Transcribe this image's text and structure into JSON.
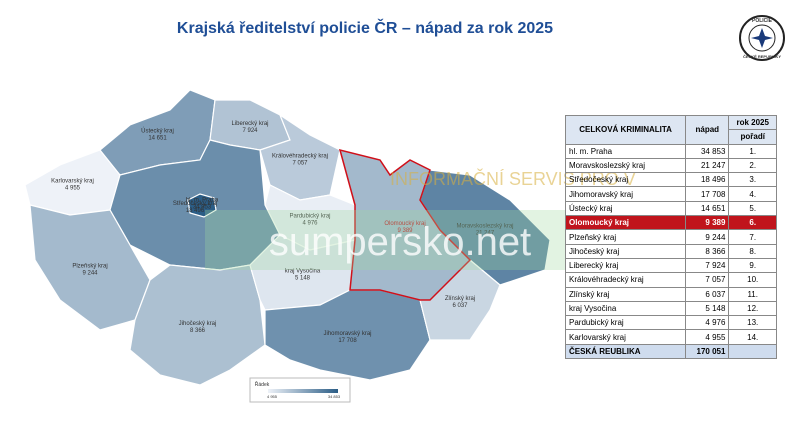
{
  "header": {
    "title": "Krajská ředitelství policie ČR – nápad za rok 2025"
  },
  "logo": {
    "top": "POLICIE",
    "bottom": "ČESKÉ REPUBLIKY"
  },
  "map": {
    "regions": [
      {
        "name": "hl. m. Praha",
        "value": "34 853"
      },
      {
        "name": "Moravskoslezský kraj",
        "value": "21 247"
      },
      {
        "name": "Středočeský kraj",
        "value": "18 496"
      },
      {
        "name": "Jihomoravský kraj",
        "value": "17 708"
      },
      {
        "name": "Ústecký kraj",
        "value": "14 651"
      },
      {
        "name": "Olomoucký kraj",
        "value": "9 389"
      },
      {
        "name": "Plzeňský kraj",
        "value": "9 244"
      },
      {
        "name": "Jihočeský kraj",
        "value": "8 366"
      },
      {
        "name": "Liberecký kraj",
        "value": "7 924"
      },
      {
        "name": "Královéhradecký kraj",
        "value": "7 057"
      },
      {
        "name": "Zlínský kraj",
        "value": "6 037"
      },
      {
        "name": "kraj Vysočina",
        "value": "5 148"
      },
      {
        "name": "Pardubický kraj",
        "value": "4 976"
      },
      {
        "name": "Karlovarský kraj",
        "value": "4 955"
      }
    ],
    "highlight": 5,
    "legend": {
      "title": "Řádek",
      "min": "4 955",
      "max": "34 853"
    }
  },
  "watermark": [
    "INFORMAČNÍ SERVIS PRO V",
    "sumpersko.net"
  ],
  "table": {
    "headers": {
      "col1": "CELKOVÁ KRIMINALITA",
      "col2": "nápad",
      "year": "rok 2025",
      "rank": "pořadí"
    },
    "rows": [
      [
        "hl. m. Praha",
        "34 853",
        "1."
      ],
      [
        "Moravskoslezský kraj",
        "21 247",
        "2."
      ],
      [
        "Středočeský kraj",
        "18 496",
        "3."
      ],
      [
        "Jihomoravský kraj",
        "17 708",
        "4."
      ],
      [
        "Ústecký kraj",
        "14 651",
        "5."
      ],
      [
        "Olomoucký kraj",
        "9 389",
        "6."
      ],
      [
        "Plzeňský kraj",
        "9 244",
        "7."
      ],
      [
        "Jihočeský kraj",
        "8 366",
        "8."
      ],
      [
        "Liberecký kraj",
        "7 924",
        "9."
      ],
      [
        "Královéhradecký kraj",
        "7 057",
        "10."
      ],
      [
        "Zlínský kraj",
        "6 037",
        "11."
      ],
      [
        "kraj Vysočina",
        "5 148",
        "12."
      ],
      [
        "Pardubický kraj",
        "4 976",
        "13."
      ],
      [
        "Karlovarský kraj",
        "4 955",
        "14."
      ]
    ],
    "highlight_row": 5,
    "total": [
      "ČESKÁ REUBLIKA",
      "170 051"
    ]
  }
}
